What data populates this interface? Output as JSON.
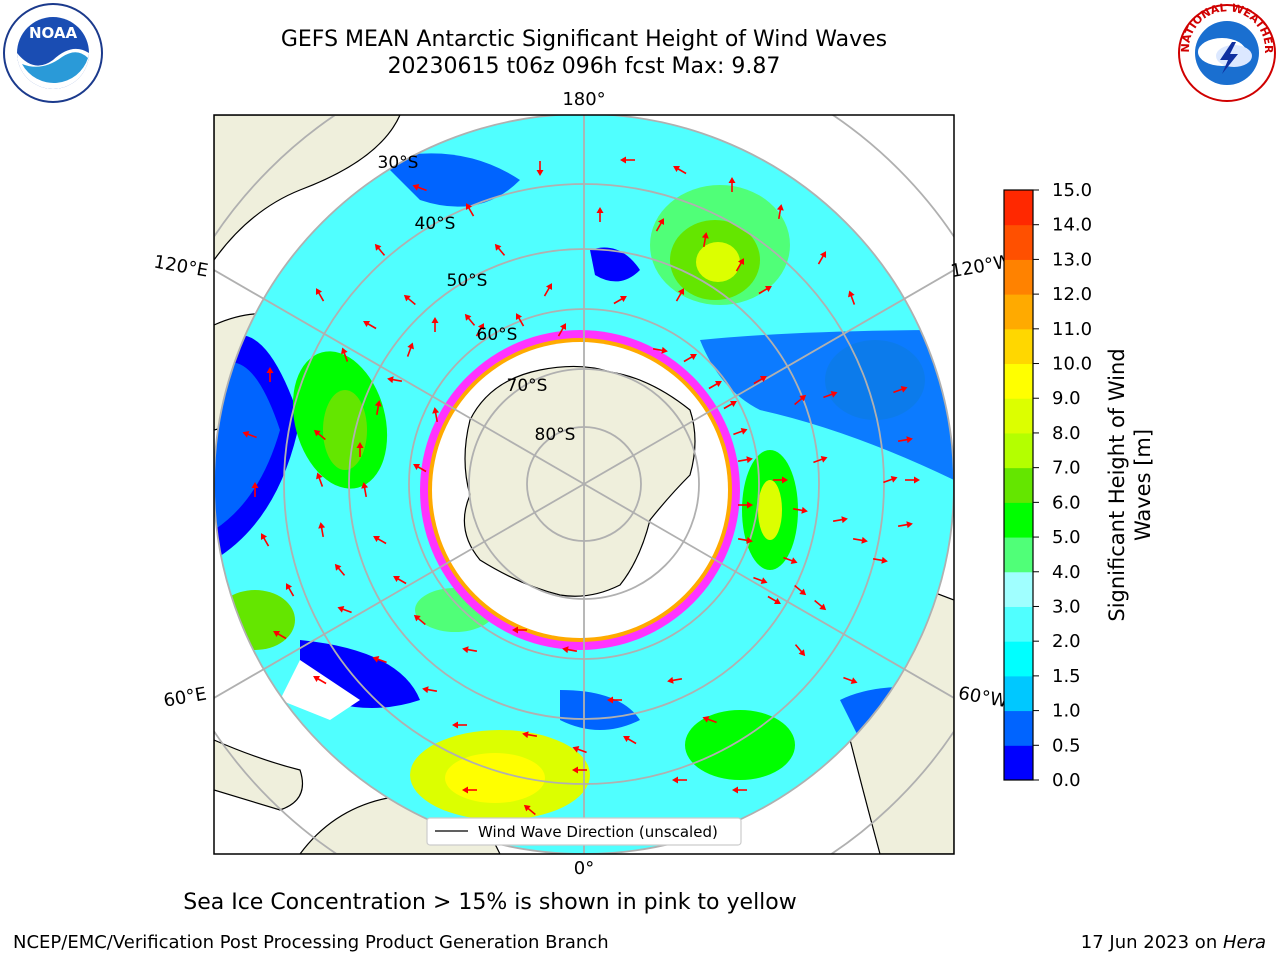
{
  "title_line1": "GEFS MEAN Antarctic Significant Height of Wind Waves",
  "title_line2": "20230615 t06z 096h fcst   Max: 9.87",
  "caption": "Sea Ice Concentration > 15% is shown in pink to yellow",
  "footer_left": "NCEP/EMC/Verification Post Processing Product Generation Branch",
  "footer_right_date": "17 Jun 2023 on ",
  "footer_right_host": "Hera",
  "noaa_logo_text": "NOAA",
  "nws_logo_text": "NATIONAL WEATHER SERVICE",
  "map": {
    "projection": "south-polar-stereographic",
    "longitude_labels": {
      "top": "180°",
      "bottom": "0°",
      "left_upper": "120°E",
      "left_lower": "60°E",
      "right_upper": "120°W",
      "right_lower": "60°W"
    },
    "latitude_labels": [
      "30°S",
      "40°S",
      "50°S",
      "60°S",
      "70°S",
      "80°S"
    ],
    "legend": "Wind Wave Direction (unscaled)",
    "arrow_color": "#ff0000",
    "land_color": "#efefdc",
    "ice_colors": [
      "#ff33ff",
      "#ffaa00",
      "#ffff00"
    ]
  },
  "colorbar": {
    "label_line1": "Significant Height of Wind",
    "label_line2": "Waves [m]",
    "ticks": [
      "0.0",
      "0.5",
      "1.0",
      "1.5",
      "2.0",
      "3.0",
      "4.0",
      "5.0",
      "6.0",
      "7.0",
      "8.0",
      "9.0",
      "10.0",
      "11.0",
      "12.0",
      "13.0",
      "14.0",
      "15.0"
    ],
    "colors": [
      "#0000ff",
      "#0064ff",
      "#00c8ff",
      "#00ffff",
      "#50ffff",
      "#a0ffff",
      "#50ff78",
      "#00ff00",
      "#64e600",
      "#b4ff00",
      "#dcff00",
      "#ffff00",
      "#ffd700",
      "#ffaa00",
      "#ff8200",
      "#ff5000",
      "#ff2800"
    ]
  }
}
